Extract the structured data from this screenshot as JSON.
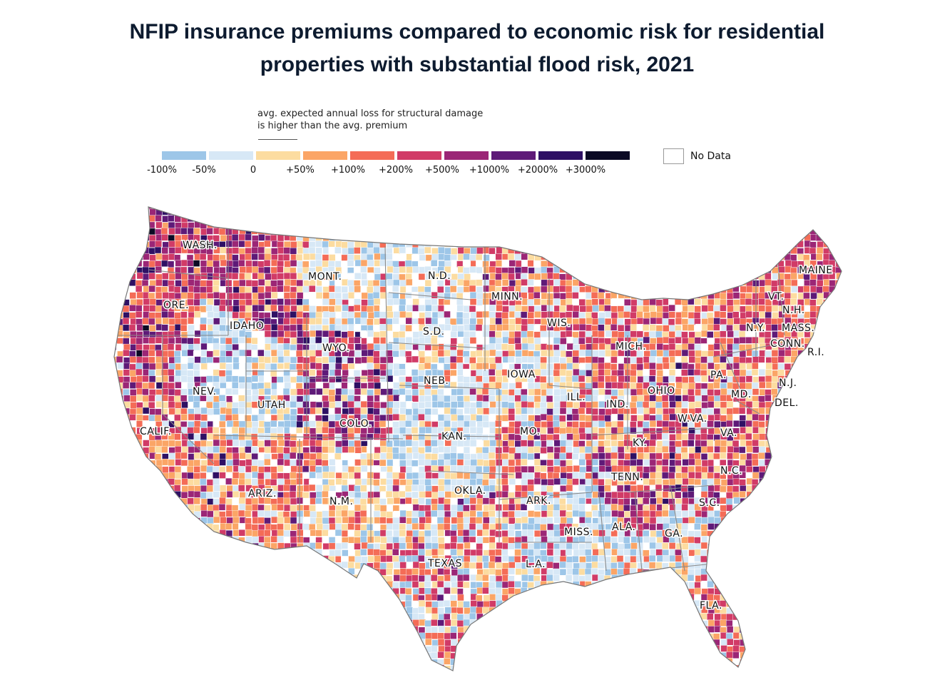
{
  "title_lines": [
    "NFIP insurance premiums compared to economic risk for residential",
    "properties with substantial flood risk, 2021"
  ],
  "legend": {
    "note_lines": [
      "avg. expected annual loss for structural damage",
      "is higher than the avg. premium"
    ],
    "bins": [
      {
        "color": "#9dc6e8",
        "label": "-100%"
      },
      {
        "color": "#d7e8f6",
        "label": "-50%"
      },
      {
        "color": "#fcdca0",
        "label": "0"
      },
      {
        "color": "#fba566",
        "label": "+50%"
      },
      {
        "color": "#f46c57",
        "label": "+100%"
      },
      {
        "color": "#d13b67",
        "label": "+200%"
      },
      {
        "color": "#9b2676",
        "label": "+500%"
      },
      {
        "color": "#5e1a78",
        "label": "+1000%"
      },
      {
        "color": "#2e1064",
        "label": "+2000%"
      },
      {
        "color": "#0b0a24",
        "label": "+3000%"
      }
    ],
    "no_data_label": "No Data"
  },
  "state_labels": [
    "WASH.",
    "MONT.",
    "N.D.",
    "MINN.",
    "MAINE",
    "ORE.",
    "VT.",
    "N.H.",
    "IDAHO",
    "WIS.",
    "S.D.",
    "N.Y.",
    "MASS.",
    "WYO.",
    "MICH.",
    "CONN.",
    "R.I.",
    "IOWA",
    "PA.",
    "NEB.",
    "N.J.",
    "NEV.",
    "OHIO",
    "MD.",
    "ILL.",
    "IND.",
    "DEL.",
    "UTAH",
    "W.VA.",
    "COLO.",
    "CALIF.",
    "KAN.",
    "MO.",
    "VA.",
    "KY.",
    "N.C.",
    "TENN.",
    "OKLA.",
    "ARIZ.",
    "ARK.",
    "N.M.",
    "S.C.",
    "MISS.",
    "ALA.",
    "GA.",
    "TEXAS",
    "L.A.",
    "FLA."
  ],
  "map_colors": {
    "no_data": "#ffffff",
    "border": "#8a8a8a"
  }
}
